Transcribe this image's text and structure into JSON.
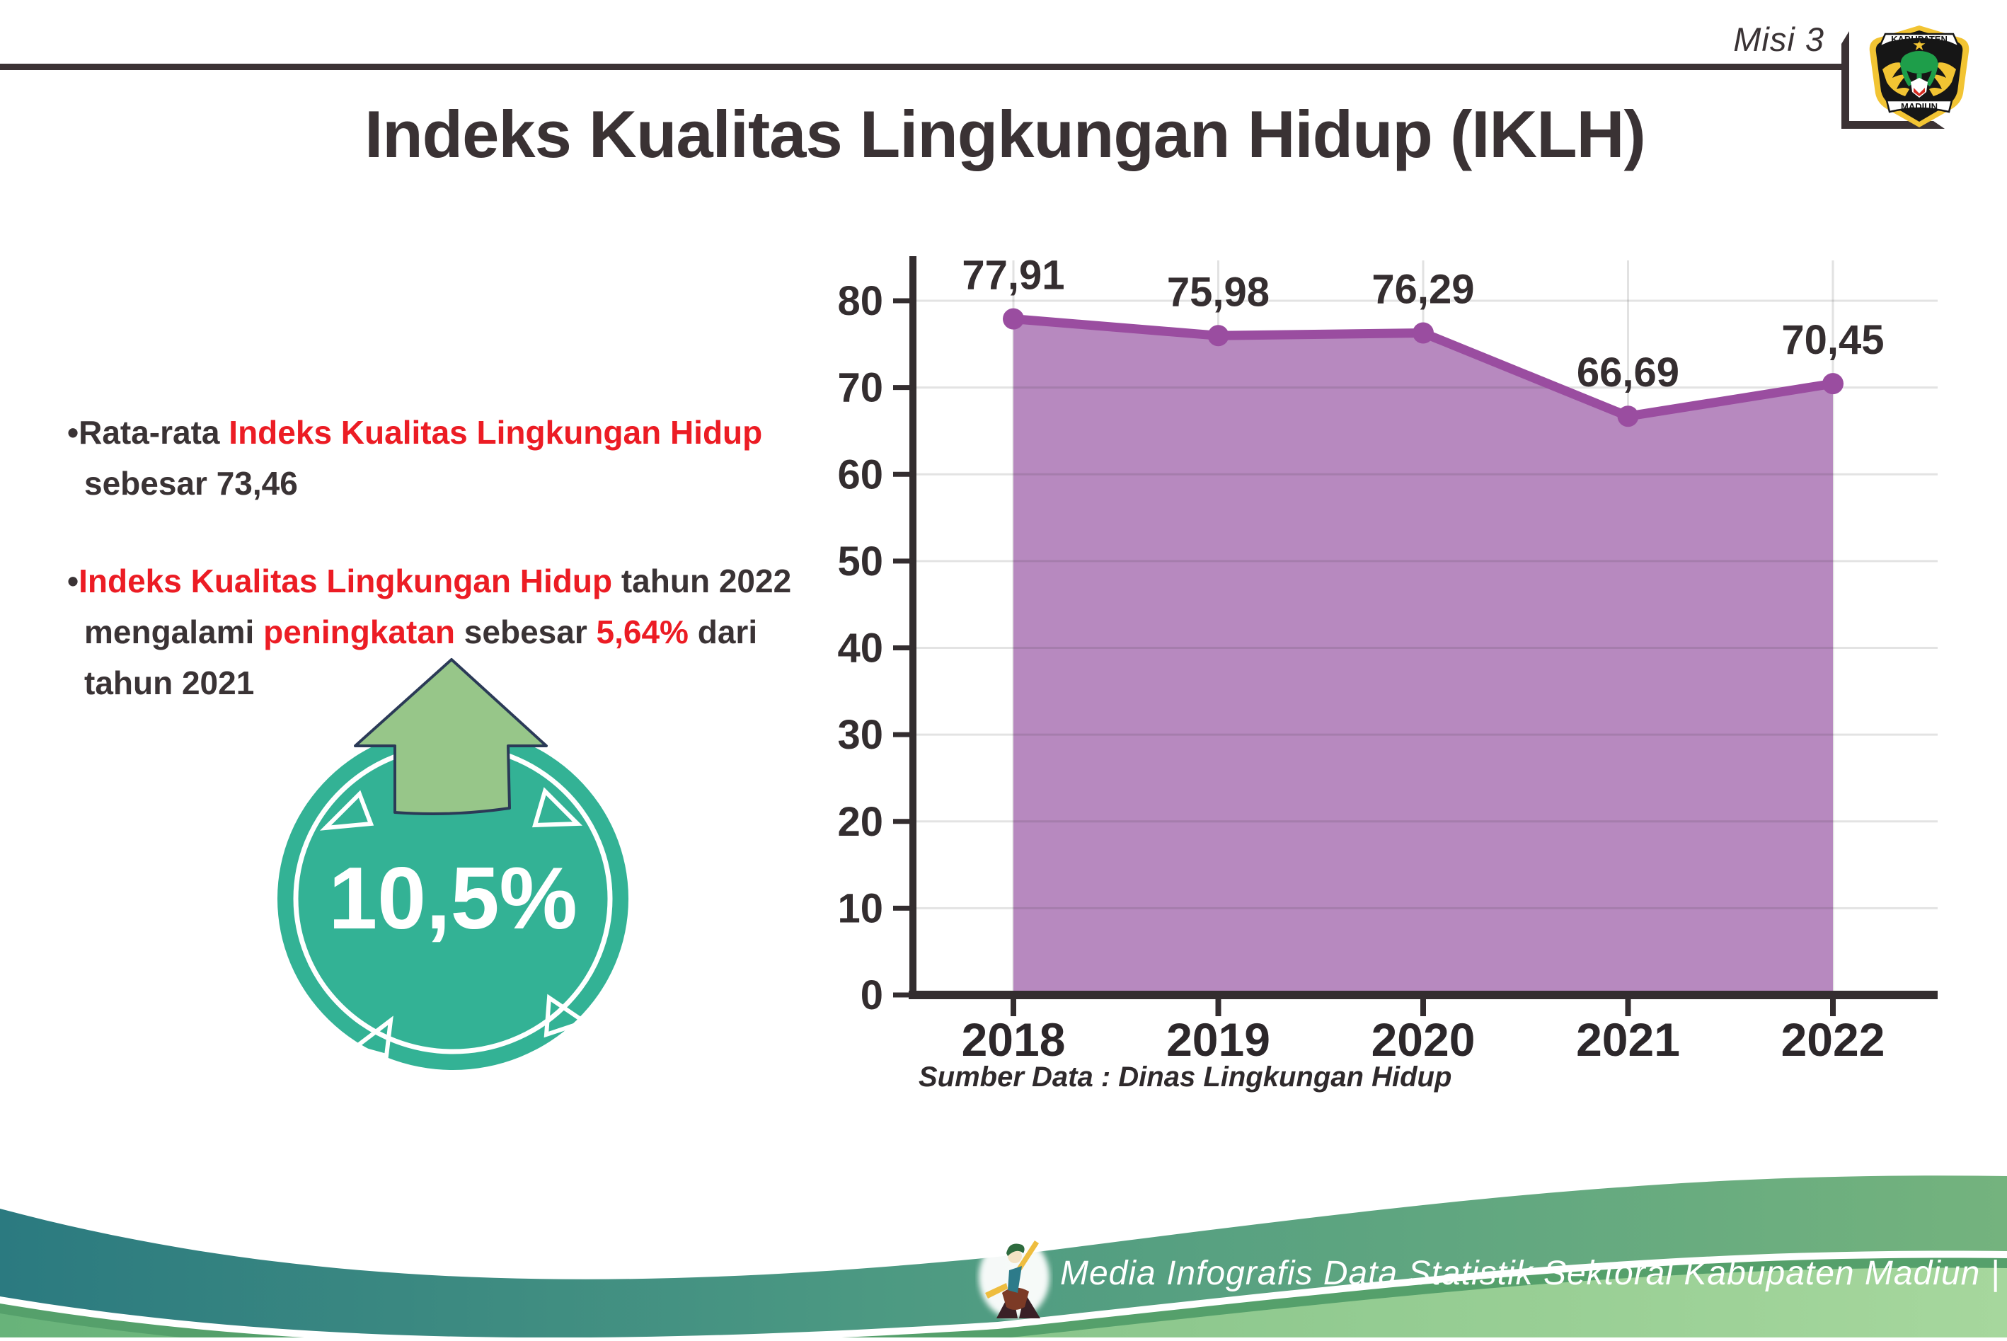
{
  "header": {
    "misi": "Misi 3",
    "title": "Indeks Kualitas Lingkungan Hidup (IKLH)",
    "logo": {
      "top": "KABUPATEN",
      "bottom": "MADIUN"
    }
  },
  "bullets": [
    {
      "segments": [
        {
          "text": "•Rata-rata ",
          "red": false
        },
        {
          "text": "Indeks Kualitas Lingkungan Hidup",
          "red": true
        },
        {
          "text": " sebesar 73,46",
          "red": false
        }
      ]
    },
    {
      "segments": [
        {
          "text": "•",
          "red": false
        },
        {
          "text": "Indeks Kualitas Lingkungan Hidup",
          "red": true
        },
        {
          "text": " tahun 2022 mengalami ",
          "red": false
        },
        {
          "text": "peningkatan",
          "red": true
        },
        {
          "text": " sebesar ",
          "red": false
        },
        {
          "text": "5,64%",
          "red": true
        },
        {
          "text": " dari tahun 2021",
          "red": false
        }
      ]
    }
  ],
  "badge": {
    "value": "10,5%",
    "circle_color": "#33b295",
    "arrow_color": "#97c689"
  },
  "chart_data": {
    "type": "area",
    "categories": [
      "2018",
      "2019",
      "2020",
      "2021",
      "2022"
    ],
    "values": [
      77.91,
      75.98,
      76.29,
      66.69,
      70.45
    ],
    "value_labels": [
      "77,91",
      "75,98",
      "76,29",
      "66,69",
      "70,45"
    ],
    "title": "",
    "xlabel": "",
    "ylabel": "",
    "ylim": [
      0,
      85
    ],
    "yticks": [
      0,
      10,
      20,
      30,
      40,
      50,
      60,
      70,
      80
    ],
    "grid": true,
    "legend": "none",
    "line_color": "#9a4da0",
    "fill_color": "#b789bf",
    "axis_color": "#332d2f",
    "source": "Sumber Data : Dinas Lingkungan Hidup"
  },
  "footer": {
    "caption": "Media Infografis Data Statistik Sektoral Kabupaten Madiun |",
    "band_teal": "#2b7a80",
    "band_green": "#74b37e",
    "base_green": "#8cc78d"
  }
}
